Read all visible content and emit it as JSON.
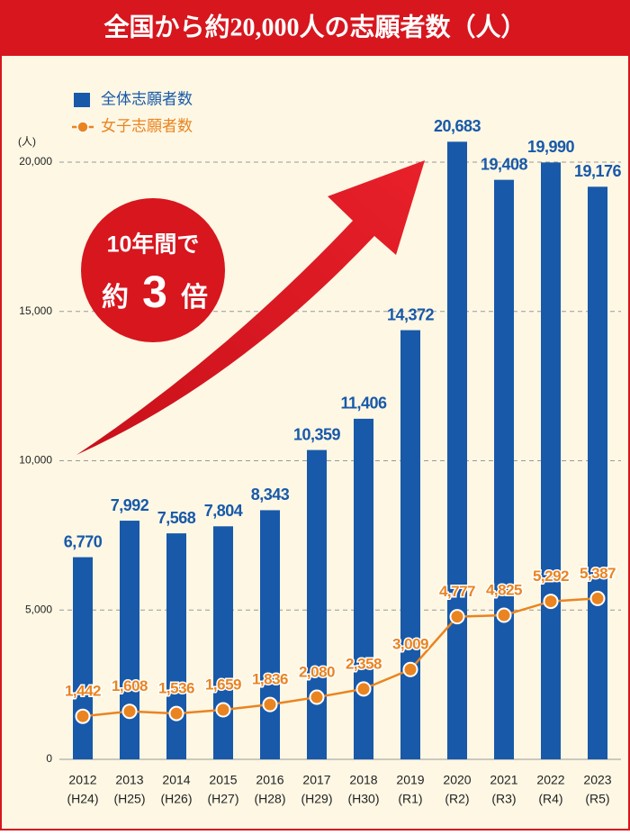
{
  "chart_data": {
    "type": "bar_line",
    "title": "全国から約20,000人の志願者数（人）",
    "y_unit": "(人)",
    "annotation": {
      "line1": "10年間で",
      "line2_prefix": "約",
      "line2_number": "3",
      "line2_suffix": "倍"
    },
    "categories": [
      "2012",
      "2013",
      "2014",
      "2015",
      "2016",
      "2017",
      "2018",
      "2019",
      "2020",
      "2021",
      "2022",
      "2023"
    ],
    "category_sublabels": [
      "(H24)",
      "(H25)",
      "(H26)",
      "(H27)",
      "(H28)",
      "(H29)",
      "(H30)",
      "(R1)",
      "(R2)",
      "(R3)",
      "(R4)",
      "(R5)"
    ],
    "series": [
      {
        "name": "全体志願者数",
        "color": "#1859a9",
        "kind": "bar",
        "values": [
          6770,
          7992,
          7568,
          7804,
          8343,
          10359,
          11406,
          14372,
          20683,
          19408,
          19990,
          19176
        ],
        "value_labels": [
          "6,770",
          "7,992",
          "7,568",
          "7,804",
          "8,343",
          "10,359",
          "11,406",
          "14,372",
          "20,683",
          "19,408",
          "19,990",
          "19,176"
        ]
      },
      {
        "name": "女子志願者数",
        "color": "#ea8420",
        "kind": "line",
        "values": [
          1442,
          1608,
          1536,
          1659,
          1836,
          2080,
          2358,
          3009,
          4777,
          4825,
          5292,
          5387
        ],
        "value_labels": [
          "1,442",
          "1,608",
          "1,536",
          "1,659",
          "1,836",
          "2,080",
          "2,358",
          "3,009",
          "4,777",
          "4,825",
          "5,292",
          "5,387"
        ]
      }
    ],
    "ylim": [
      0,
      20000
    ],
    "yticks": [
      0,
      {
        "value": 5000,
        "label": "5,000"
      },
      {
        "value": 10000,
        "label": "10,000"
      },
      {
        "value": 15000,
        "label": "15,000"
      },
      {
        "value": 20000,
        "label": "20,000"
      }
    ],
    "grid": true
  }
}
